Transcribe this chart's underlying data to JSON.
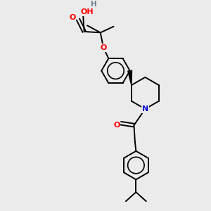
{
  "background_color": "#ebebeb",
  "atom_colors": {
    "O": "#ff0000",
    "N": "#0000cd",
    "H": "#708090",
    "C": "#000000"
  },
  "bond_color": "#000000",
  "bond_width": 1.4,
  "figsize": [
    3.0,
    3.0
  ],
  "dpi": 100,
  "xlim": [
    0,
    10
  ],
  "ylim": [
    0,
    10
  ]
}
